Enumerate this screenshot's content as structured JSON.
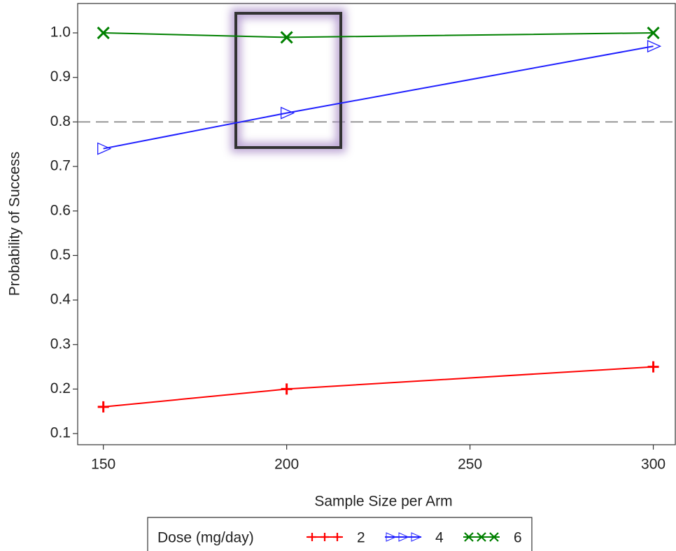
{
  "chart_data": {
    "type": "line",
    "x_label": "Sample Size per Arm",
    "y_label": "Probability of Success",
    "x": [
      150,
      200,
      300
    ],
    "series": [
      {
        "name": "2",
        "color": "#ff0000",
        "marker": "plus",
        "values": [
          0.16,
          0.2,
          0.25
        ]
      },
      {
        "name": "4",
        "color": "#2020ff",
        "marker": "triangle-right",
        "values": [
          0.74,
          0.82,
          0.97
        ]
      },
      {
        "name": "6",
        "color": "#008000",
        "marker": "x",
        "values": [
          1.0,
          0.99,
          1.0
        ]
      }
    ],
    "legend_title": "Dose (mg/day)",
    "legend_position": "bottom",
    "reference_line": 0.8,
    "xlim": [
      143,
      306
    ],
    "xticks": [
      150,
      200,
      250,
      300
    ],
    "ylim": [
      0.075,
      1.066
    ],
    "yticks": [
      0.1,
      0.2,
      0.3,
      0.4,
      0.5,
      0.6,
      0.7,
      0.8,
      0.9,
      {
        "value": 1,
        "label": "1.0"
      }
    ]
  }
}
